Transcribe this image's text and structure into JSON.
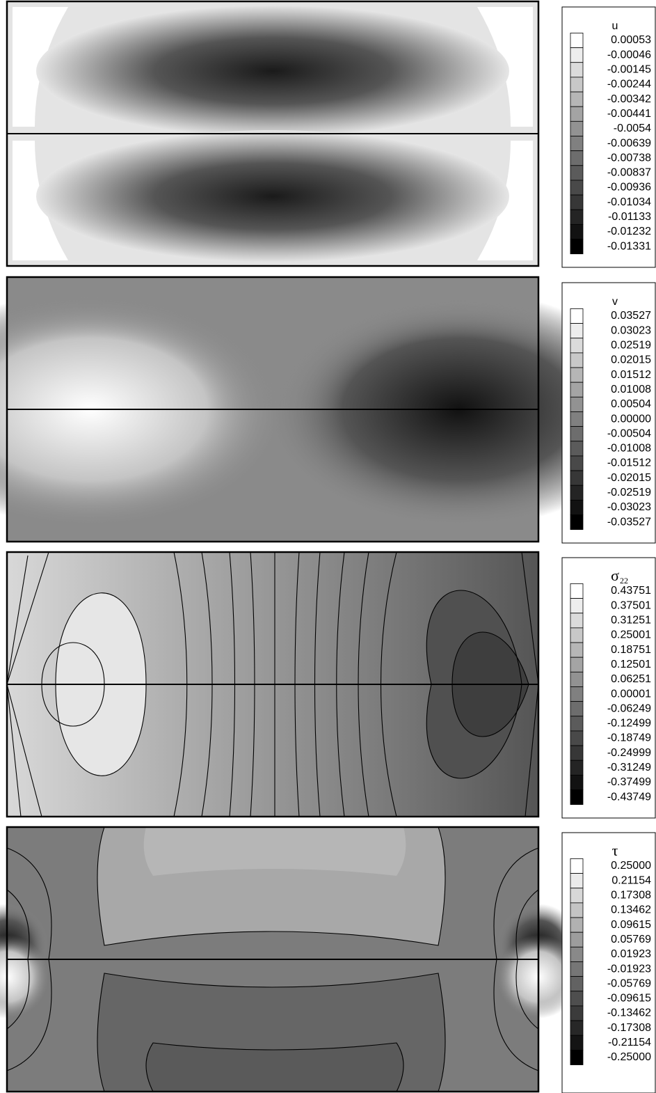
{
  "chart_data": [
    {
      "type": "contour",
      "title": "u",
      "levels": [
        0.00053,
        -0.00046,
        -0.00145,
        -0.00244,
        -0.00342,
        -0.00441,
        -0.0054,
        -0.00639,
        -0.00738,
        -0.00837,
        -0.00936,
        -0.01034,
        -0.01133,
        -0.01232,
        -0.01331
      ]
    },
    {
      "type": "contour",
      "title": "v",
      "levels": [
        0.03527,
        0.03023,
        0.02519,
        0.02015,
        0.01512,
        0.01008,
        0.00504,
        {
          "value": 0,
          "label": "0.00000"
        },
        -0.00504,
        -0.01008,
        -0.01512,
        -0.02015,
        -0.02519,
        -0.03023,
        -0.03527
      ]
    },
    {
      "type": "contour",
      "title": "σ",
      "title_subscript": "22",
      "levels": [
        0.43751,
        0.37501,
        0.31251,
        0.25001,
        0.18751,
        0.12501,
        0.06251,
        1e-05,
        -0.06249,
        -0.12499,
        -0.18749,
        -0.24999,
        -0.31249,
        -0.37499,
        -0.43749
      ]
    },
    {
      "type": "contour",
      "title": "τ",
      "levels": [
        {
          "value": 0.25,
          "label": "0.25000"
        },
        0.21154,
        0.17308,
        0.13462,
        0.09615,
        0.05769,
        0.01923,
        -0.01923,
        -0.05769,
        -0.09615,
        -0.13462,
        -0.17308,
        -0.21154,
        {
          "value": -0.25,
          "label": "-0.25000"
        }
      ]
    }
  ]
}
